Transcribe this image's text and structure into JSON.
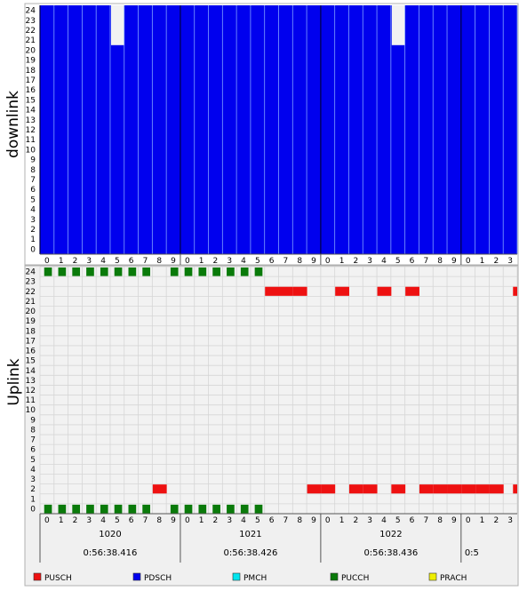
{
  "panels": {
    "downlink_label": "downlink",
    "uplink_label": "Uplink"
  },
  "colors": {
    "pdsch": "#0000ee",
    "pusch": "#ee1111",
    "pucch": "#0a7a0a",
    "pmch": "#00e5ee",
    "prach": "#eeee00",
    "empty": "#f2f2f2",
    "grid_light": "#d6d6d6",
    "grid_dl": "#7fa0ff",
    "axis": "#555555"
  },
  "chart_data": [
    {
      "type": "heatmap",
      "name": "downlink",
      "y_ticks": [
        0,
        1,
        2,
        3,
        4,
        5,
        6,
        7,
        8,
        9,
        10,
        11,
        12,
        13,
        14,
        15,
        16,
        17,
        18,
        19,
        20,
        21,
        22,
        23,
        24
      ],
      "x_tick_labels": [
        "0",
        "1",
        "2",
        "3",
        "4",
        "5",
        "6",
        "7",
        "8",
        "9",
        "0",
        "1",
        "2",
        "3",
        "4",
        "5",
        "6",
        "7",
        "8",
        "9",
        "0",
        "1",
        "2",
        "3",
        "4",
        "5",
        "6",
        "7",
        "8",
        "9",
        "0",
        "1",
        "2",
        "3"
      ],
      "fill": "PDSCH",
      "empty_cells": [
        {
          "x": 5,
          "rbs": [
            21,
            22,
            23,
            24
          ]
        },
        {
          "x": 25,
          "rbs": [
            21,
            22,
            23,
            24
          ]
        }
      ]
    },
    {
      "type": "heatmap",
      "name": "uplink",
      "y_ticks": [
        0,
        1,
        2,
        3,
        4,
        5,
        6,
        7,
        8,
        9,
        10,
        11,
        12,
        13,
        14,
        15,
        16,
        17,
        18,
        19,
        20,
        21,
        22,
        23,
        24
      ],
      "x_tick_labels": [
        "0",
        "1",
        "2",
        "3",
        "4",
        "5",
        "6",
        "7",
        "8",
        "9",
        "0",
        "1",
        "2",
        "3",
        "4",
        "5",
        "6",
        "7",
        "8",
        "9",
        "0",
        "1",
        "2",
        "3",
        "4",
        "5",
        "6",
        "7",
        "8",
        "9",
        "0",
        "1",
        "2",
        "3"
      ],
      "frames": [
        {
          "label": "1020",
          "time": "0:56:38.416"
        },
        {
          "label": "1021",
          "time": "0:56:38.426"
        },
        {
          "label": "1022",
          "time": "0:56:38.436"
        },
        {
          "label": "",
          "time": "0:5"
        }
      ],
      "pucch": [
        {
          "rb": 24,
          "subframes": [
            0,
            1,
            2,
            3,
            4,
            5,
            6,
            7,
            9,
            10,
            11,
            12,
            13,
            14,
            15
          ]
        },
        {
          "rb": 0,
          "subframes": [
            0,
            1,
            2,
            3,
            4,
            5,
            6,
            7,
            9,
            10,
            11,
            12,
            13,
            14,
            15
          ]
        }
      ],
      "pusch": [
        {
          "rb": 22,
          "subframes": [
            16,
            17,
            18,
            21,
            24,
            26,
            33
          ]
        },
        {
          "rb": 2,
          "subframes": [
            8,
            19,
            20,
            22,
            23,
            25,
            27,
            28,
            29,
            30,
            31,
            32,
            33
          ]
        }
      ]
    }
  ],
  "legend": [
    {
      "label": "PUSCH",
      "color": "#ee1111"
    },
    {
      "label": "PDSCH",
      "color": "#0000ee"
    },
    {
      "label": "PMCH",
      "color": "#00e5ee"
    },
    {
      "label": "PUCCH",
      "color": "#0a7a0a"
    },
    {
      "label": "PRACH",
      "color": "#eeee00"
    }
  ]
}
